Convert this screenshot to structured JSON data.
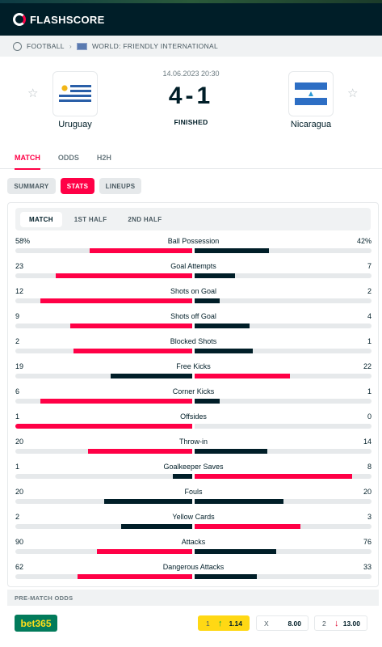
{
  "brand": "FLASHSCORE",
  "breadcrumb": {
    "sport": "FOOTBALL",
    "competition": "WORLD: FRIENDLY INTERNATIONAL"
  },
  "match": {
    "date": "14.06.2023 20:30",
    "score": "4-1",
    "status": "FINISHED",
    "home": {
      "name": "Uruguay"
    },
    "away": {
      "name": "Nicaragua"
    }
  },
  "tabs": [
    {
      "label": "MATCH"
    },
    {
      "label": "ODDS"
    },
    {
      "label": "H2H"
    }
  ],
  "subtabs": [
    {
      "label": "SUMMARY"
    },
    {
      "label": "STATS"
    },
    {
      "label": "LINEUPS"
    }
  ],
  "periods": [
    {
      "label": "MATCH"
    },
    {
      "label": "1ST HALF"
    },
    {
      "label": "2ND HALF"
    }
  ],
  "colors": {
    "accent": "#ff0046",
    "dark": "#001e28",
    "track": "#e6e9eb"
  },
  "stats": [
    {
      "category": "Ball Possession",
      "home": "58%",
      "away": "42%",
      "home_share": 0.58,
      "away_share": 0.42,
      "leader": "home"
    },
    {
      "category": "Goal Attempts",
      "home": "23",
      "away": "7",
      "home_share": 0.77,
      "away_share": 0.23,
      "leader": "home"
    },
    {
      "category": "Shots on Goal",
      "home": "12",
      "away": "2",
      "home_share": 0.86,
      "away_share": 0.14,
      "leader": "home"
    },
    {
      "category": "Shots off Goal",
      "home": "9",
      "away": "4",
      "home_share": 0.69,
      "away_share": 0.31,
      "leader": "home"
    },
    {
      "category": "Blocked Shots",
      "home": "2",
      "away": "1",
      "home_share": 0.67,
      "away_share": 0.33,
      "leader": "home"
    },
    {
      "category": "Free Kicks",
      "home": "19",
      "away": "22",
      "home_share": 0.46,
      "away_share": 0.54,
      "leader": "away"
    },
    {
      "category": "Corner Kicks",
      "home": "6",
      "away": "1",
      "home_share": 0.86,
      "away_share": 0.14,
      "leader": "home"
    },
    {
      "category": "Offsides",
      "home": "1",
      "away": "0",
      "home_share": 1.0,
      "away_share": 0.0,
      "leader": "home"
    },
    {
      "category": "Throw-in",
      "home": "20",
      "away": "14",
      "home_share": 0.59,
      "away_share": 0.41,
      "leader": "home"
    },
    {
      "category": "Goalkeeper Saves",
      "home": "1",
      "away": "8",
      "home_share": 0.11,
      "away_share": 0.89,
      "leader": "away"
    },
    {
      "category": "Fouls",
      "home": "20",
      "away": "20",
      "home_share": 0.5,
      "away_share": 0.5,
      "leader": "none"
    },
    {
      "category": "Yellow Cards",
      "home": "2",
      "away": "3",
      "home_share": 0.4,
      "away_share": 0.6,
      "leader": "away"
    },
    {
      "category": "Attacks",
      "home": "90",
      "away": "76",
      "home_share": 0.54,
      "away_share": 0.46,
      "leader": "home"
    },
    {
      "category": "Dangerous Attacks",
      "home": "62",
      "away": "33",
      "home_share": 0.65,
      "away_share": 0.35,
      "leader": "home"
    }
  ],
  "odds": {
    "header": "PRE-MATCH ODDS",
    "bookmaker": "bet365",
    "items": [
      {
        "label": "1",
        "value": "1.14",
        "trend": "up",
        "highlight": true
      },
      {
        "label": "X",
        "value": "8.00",
        "trend": "none",
        "highlight": false
      },
      {
        "label": "2",
        "value": "13.00",
        "trend": "down",
        "highlight": false
      }
    ]
  }
}
